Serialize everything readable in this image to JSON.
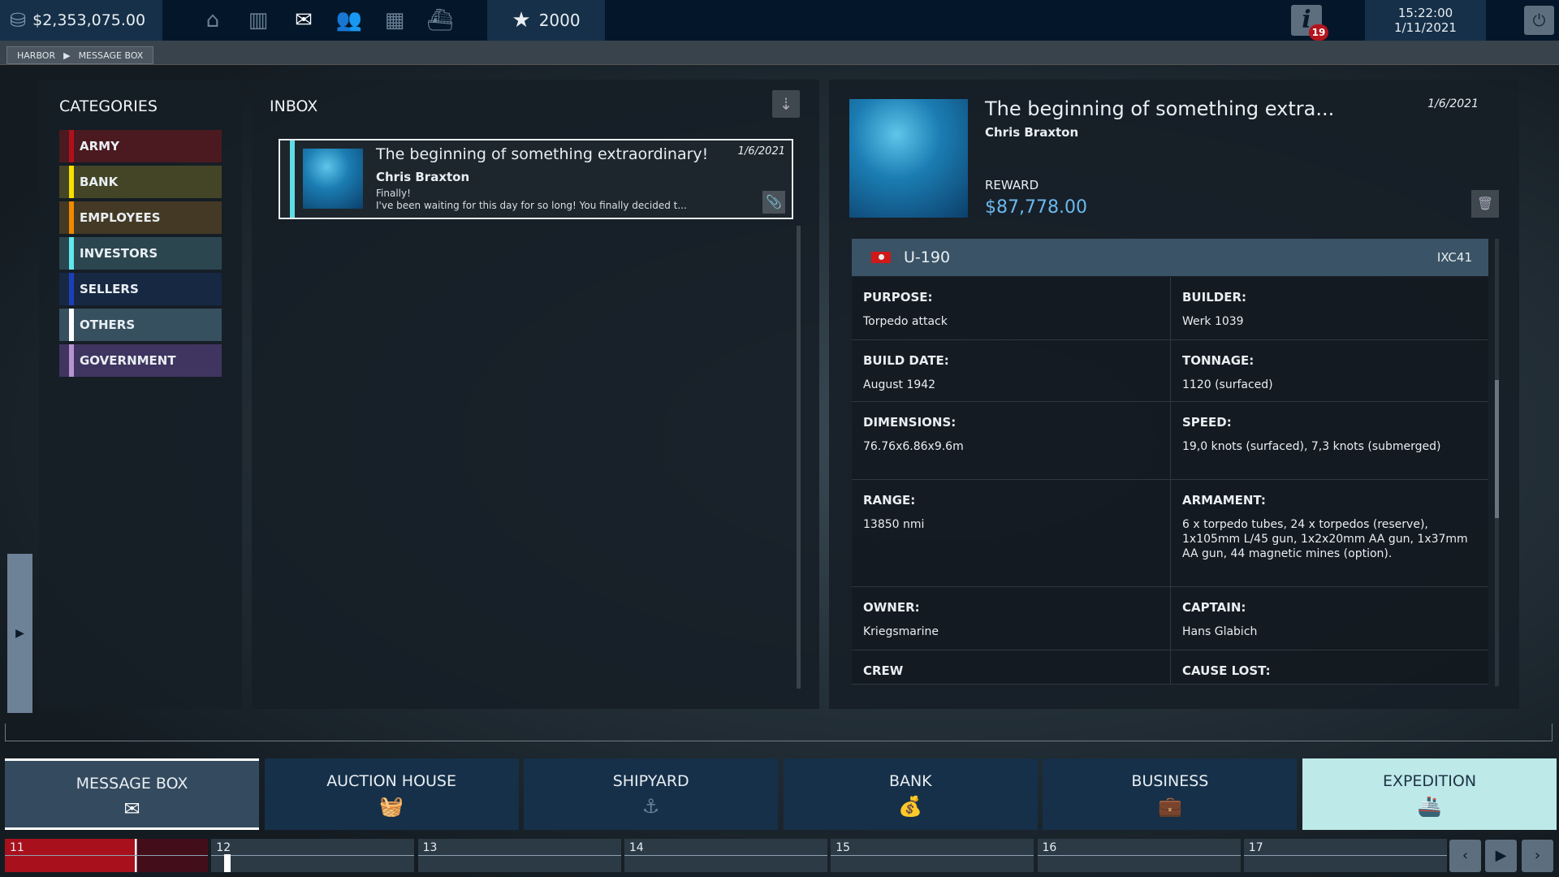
{
  "topbar": {
    "money": "$2,353,075.00",
    "stars": "2000",
    "notifications": "19",
    "time": "15:22:00",
    "date": "1/11/2021",
    "nav_icons": [
      "home-icon",
      "map-icon",
      "mail-icon",
      "people-icon",
      "city-icon",
      "harbor-icon"
    ]
  },
  "breadcrumb": [
    "HARBOR",
    "MESSAGE BOX"
  ],
  "categories": {
    "title": "CATEGORIES",
    "items": [
      {
        "label": "ARMY",
        "color": "#b0101c",
        "bg": "#4a1a20"
      },
      {
        "label": "BANK",
        "color": "#f5e000",
        "bg": "#434526"
      },
      {
        "label": "EMPLOYEES",
        "color": "#f08a00",
        "bg": "#433924"
      },
      {
        "label": "INVESTORS",
        "color": "#5fe8ec",
        "bg": "#2c4650"
      },
      {
        "label": "SELLERS",
        "color": "#1c3fb8",
        "bg": "#172843"
      },
      {
        "label": "OTHERS",
        "color": "#ffffff",
        "bg": "#37505f"
      },
      {
        "label": "GOVERNMENT",
        "color": "#b893d1",
        "bg": "#3f3560"
      }
    ]
  },
  "inbox": {
    "title": "INBOX",
    "messages": [
      {
        "title": "The beginning of something extraordinary!",
        "sender": "Chris Braxton",
        "date": "1/6/2021",
        "line1": "Finally!",
        "line2": "I've been waiting for this day for so long! You finally decided t..."
      }
    ]
  },
  "detail": {
    "title": "The beginning of something extra...",
    "sender": "Chris Braxton",
    "date": "1/6/2021",
    "reward_label": "REWARD",
    "reward": "$87,778.00",
    "ship": {
      "name": "U-190",
      "class": "IXC41",
      "rows": [
        [
          {
            "k": "PURPOSE:",
            "v": "Torpedo attack"
          },
          {
            "k": "BUILDER:",
            "v": "Werk 1039"
          }
        ],
        [
          {
            "k": "BUILD DATE:",
            "v": "August 1942"
          },
          {
            "k": "TONNAGE:",
            "v": "1120 (surfaced)"
          }
        ],
        [
          {
            "k": "DIMENSIONS:",
            "v": "76.76x6.86x9.6m"
          },
          {
            "k": "SPEED:",
            "v": "19,0 knots (surfaced), 7,3 knots (submerged)"
          }
        ],
        [
          {
            "k": "RANGE:",
            "v": "13850 nmi"
          },
          {
            "k": "ARMAMENT:",
            "v": "6 x torpedo tubes, 24 x torpedos (reserve), 1x105mm L/45 gun, 1x2x20mm AA gun, 1x37mm AA gun, 44 magnetic mines (option)."
          }
        ],
        [
          {
            "k": "OWNER:",
            "v": "Kriegsmarine"
          },
          {
            "k": "CAPTAIN:",
            "v": "Hans Glabich"
          }
        ],
        [
          {
            "k": "CREW",
            "v": ""
          },
          {
            "k": "CAUSE LOST:",
            "v": ""
          }
        ]
      ]
    }
  },
  "tabs": [
    {
      "label": "MESSAGE BOX",
      "icon": "mail-icon",
      "active": true
    },
    {
      "label": "AUCTION HOUSE",
      "icon": "basket-icon"
    },
    {
      "label": "SHIPYARD",
      "icon": "anchor-icon"
    },
    {
      "label": "BANK",
      "icon": "money-bag-icon"
    },
    {
      "label": "BUSINESS",
      "icon": "briefcase-icon"
    },
    {
      "label": "EXPEDITION",
      "icon": "ship-icon",
      "highlight": true
    }
  ],
  "timeline": {
    "days": [
      "11",
      "12",
      "13",
      "14",
      "15",
      "16",
      "17"
    ],
    "current_day_progress": 0.64
  }
}
